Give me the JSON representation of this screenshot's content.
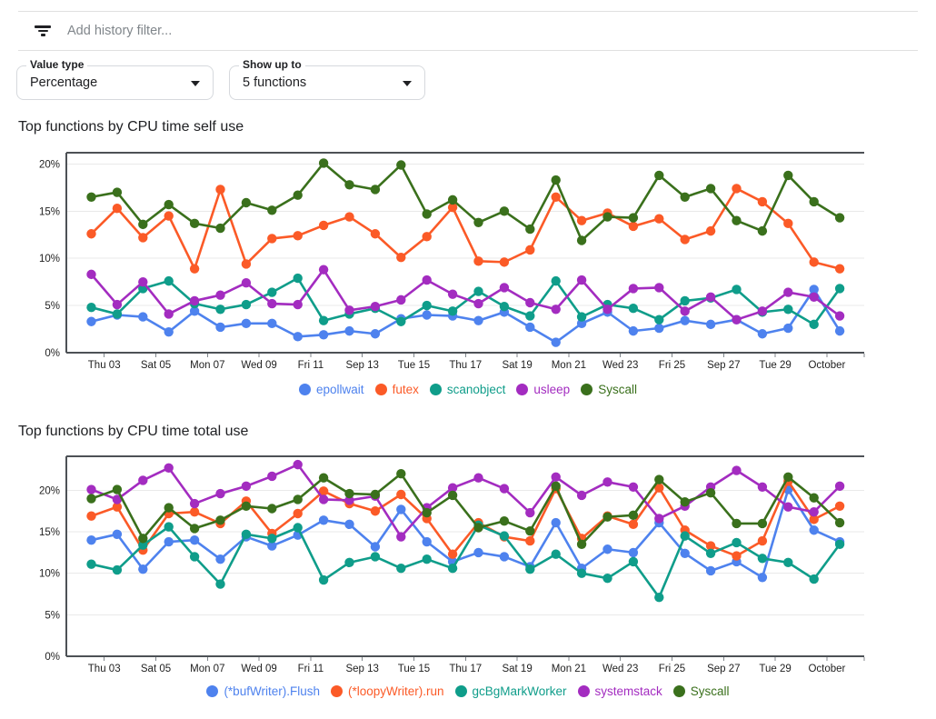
{
  "filter_bar": {
    "placeholder": "Add history filter..."
  },
  "controls": {
    "value_type": {
      "label": "Value type",
      "value": "Percentage"
    },
    "show_up_to": {
      "label": "Show up to",
      "value": "5 functions"
    }
  },
  "chart_data": [
    {
      "type": "line",
      "title": "Top functions by CPU time self use",
      "xlabel": "",
      "ylabel": "",
      "ylim": [
        0,
        21.2
      ],
      "yticks": [
        0,
        5,
        10,
        15,
        20
      ],
      "ytick_labels": [
        "0%",
        "5%",
        "10%",
        "15%",
        "20%"
      ],
      "grid": true,
      "legend_position": "bottom",
      "x_tick_labels": [
        "Thu 03",
        "Sat 05",
        "Mon 07",
        "Wed 09",
        "Fri 11",
        "Sep 13",
        "Tue 15",
        "Thu 17",
        "Sat 19",
        "Mon 21",
        "Wed 23",
        "Fri 25",
        "Sep 27",
        "Tue 29",
        "October"
      ],
      "points_per_series": 30,
      "series": [
        {
          "name": "epollwait",
          "color": "#4e82ee",
          "values": [
            3.3,
            4.0,
            3.8,
            2.2,
            4.4,
            2.7,
            3.1,
            3.1,
            1.7,
            1.9,
            2.3,
            2.0,
            3.6,
            4.0,
            3.9,
            3.4,
            4.3,
            2.7,
            1.1,
            3.1,
            4.3,
            2.3,
            2.6,
            3.4,
            3.0,
            3.5,
            2.0,
            2.6,
            6.7,
            2.3
          ]
        },
        {
          "name": "futex",
          "color": "#fb5a27",
          "values": [
            12.6,
            15.3,
            12.2,
            14.5,
            8.9,
            17.3,
            9.4,
            12.1,
            12.4,
            13.5,
            14.4,
            12.6,
            10.1,
            12.3,
            15.4,
            9.7,
            9.6,
            10.9,
            16.5,
            14.0,
            14.8,
            13.4,
            14.2,
            12.0,
            12.9,
            17.4,
            16.0,
            13.7,
            9.6,
            8.9
          ]
        },
        {
          "name": "scanobject",
          "color": "#0f9d8a",
          "values": [
            4.8,
            4.1,
            6.8,
            7.6,
            5.2,
            4.6,
            5.1,
            6.4,
            7.9,
            3.4,
            4.1,
            4.7,
            3.3,
            5.0,
            4.4,
            6.5,
            4.9,
            3.9,
            7.6,
            3.8,
            5.1,
            4.7,
            3.5,
            5.5,
            5.8,
            6.7,
            4.3,
            4.6,
            3.0,
            6.8
          ]
        },
        {
          "name": "usleep",
          "color": "#a32cc0",
          "values": [
            8.3,
            5.1,
            7.5,
            4.1,
            5.5,
            6.1,
            7.4,
            5.2,
            5.1,
            8.8,
            4.5,
            4.9,
            5.6,
            7.7,
            6.2,
            5.2,
            6.9,
            5.3,
            4.6,
            7.7,
            4.6,
            6.8,
            6.9,
            4.4,
            5.9,
            3.5,
            4.4,
            6.4,
            5.9,
            3.9
          ]
        },
        {
          "name": "Syscall",
          "color": "#3a701c",
          "values": [
            16.5,
            17.0,
            13.6,
            15.7,
            13.7,
            13.2,
            15.9,
            15.1,
            16.7,
            20.1,
            17.8,
            17.3,
            19.9,
            14.7,
            16.2,
            13.8,
            15.0,
            13.1,
            18.3,
            11.9,
            14.4,
            14.3,
            18.8,
            16.5,
            17.4,
            14.0,
            12.9,
            18.8,
            16.0,
            14.3
          ]
        }
      ]
    },
    {
      "type": "line",
      "title": "Top functions by CPU time total use",
      "xlabel": "",
      "ylabel": "",
      "ylim": [
        0,
        24.1
      ],
      "yticks": [
        0,
        5,
        10,
        15,
        20
      ],
      "ytick_labels": [
        "0%",
        "5%",
        "10%",
        "15%",
        "20%"
      ],
      "grid": true,
      "legend_position": "bottom",
      "x_tick_labels": [
        "Thu 03",
        "Sat 05",
        "Mon 07",
        "Wed 09",
        "Fri 11",
        "Sep 13",
        "Tue 15",
        "Thu 17",
        "Sat 19",
        "Mon 21",
        "Wed 23",
        "Fri 25",
        "Sep 27",
        "Tue 29",
        "October"
      ],
      "points_per_series": 30,
      "series": [
        {
          "name": "(*bufWriter).Flush",
          "color": "#4e82ee",
          "values": [
            14.0,
            14.7,
            10.5,
            13.8,
            14.0,
            11.7,
            14.4,
            13.3,
            14.6,
            16.4,
            15.9,
            13.2,
            17.7,
            13.8,
            11.4,
            12.5,
            12.0,
            10.8,
            16.1,
            10.6,
            12.9,
            12.5,
            16.1,
            12.4,
            10.3,
            11.4,
            9.5,
            20.1,
            15.2,
            13.8
          ]
        },
        {
          "name": "(*loopyWriter).run",
          "color": "#fb5a27",
          "values": [
            16.9,
            18.0,
            12.8,
            17.2,
            17.4,
            16.0,
            18.7,
            14.8,
            17.2,
            19.9,
            18.4,
            17.5,
            19.5,
            16.6,
            12.3,
            16.1,
            14.4,
            13.9,
            20.2,
            14.2,
            16.9,
            15.9,
            20.3,
            15.2,
            13.3,
            12.1,
            13.9,
            21.1,
            16.5,
            18.1
          ]
        },
        {
          "name": "gcBgMarkWorker",
          "color": "#0f9d8a",
          "values": [
            11.1,
            10.4,
            13.4,
            15.6,
            12.0,
            8.7,
            14.7,
            14.2,
            15.5,
            9.2,
            11.3,
            12.0,
            10.6,
            11.7,
            10.6,
            15.8,
            14.5,
            10.5,
            12.3,
            10.0,
            9.4,
            11.4,
            7.1,
            14.5,
            12.4,
            13.7,
            11.8,
            11.3,
            9.3,
            13.5
          ]
        },
        {
          "name": "systemstack",
          "color": "#a32cc0",
          "values": [
            20.1,
            18.9,
            21.2,
            22.7,
            18.4,
            19.6,
            20.5,
            21.7,
            23.1,
            18.9,
            18.8,
            19.3,
            14.4,
            17.9,
            20.3,
            21.5,
            20.2,
            17.3,
            21.6,
            19.4,
            21.0,
            20.4,
            16.6,
            18.1,
            20.4,
            22.4,
            20.4,
            18.0,
            17.4,
            20.5
          ]
        },
        {
          "name": "Syscall",
          "color": "#3a701c",
          "values": [
            19.0,
            20.1,
            14.2,
            17.9,
            15.4,
            16.4,
            18.1,
            17.8,
            18.9,
            21.5,
            19.6,
            19.5,
            22.0,
            17.3,
            19.4,
            15.5,
            16.3,
            15.1,
            20.5,
            13.5,
            16.8,
            17.0,
            21.3,
            18.6,
            19.7,
            16.0,
            16.0,
            21.6,
            19.1,
            16.1
          ]
        }
      ]
    }
  ]
}
